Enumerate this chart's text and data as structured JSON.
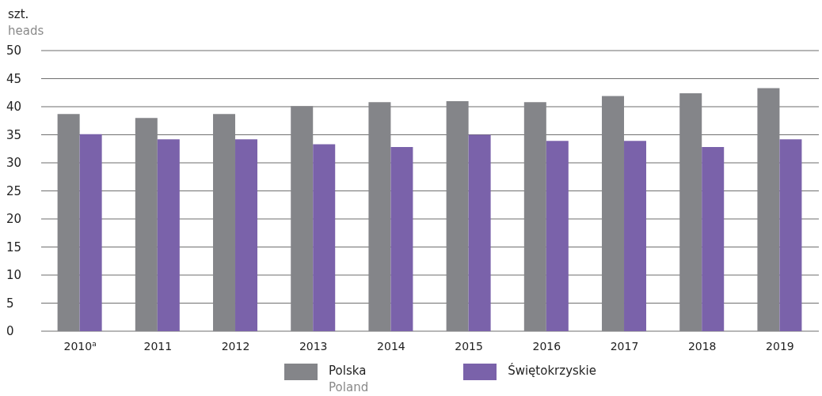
{
  "chart_data": {
    "type": "bar",
    "ylabel": "szt.\nheads",
    "categories": [
      "2010$^{a}$",
      "2011",
      "2012",
      "2013",
      "2014",
      "2015",
      "2016",
      "2017",
      "2018",
      "2019"
    ],
    "series": [
      {
        "name": "Polska\nPoland",
        "color": "#848589",
        "values": [
          38.7,
          38.0,
          38.7,
          40.1,
          40.8,
          41.0,
          40.8,
          41.9,
          42.4,
          43.3
        ]
      },
      {
        "name": "Świętokrzyskie",
        "color": "#7a62aa",
        "values": [
          35.1,
          34.2,
          34.2,
          33.3,
          32.8,
          35.0,
          33.9,
          33.9,
          32.8,
          34.2
        ]
      }
    ],
    "ylim": [
      0,
      50
    ],
    "yticks": [
      0,
      5,
      10,
      15,
      20,
      25,
      30,
      35,
      40,
      45,
      50
    ],
    "grid": "y",
    "legend": "bottom"
  }
}
